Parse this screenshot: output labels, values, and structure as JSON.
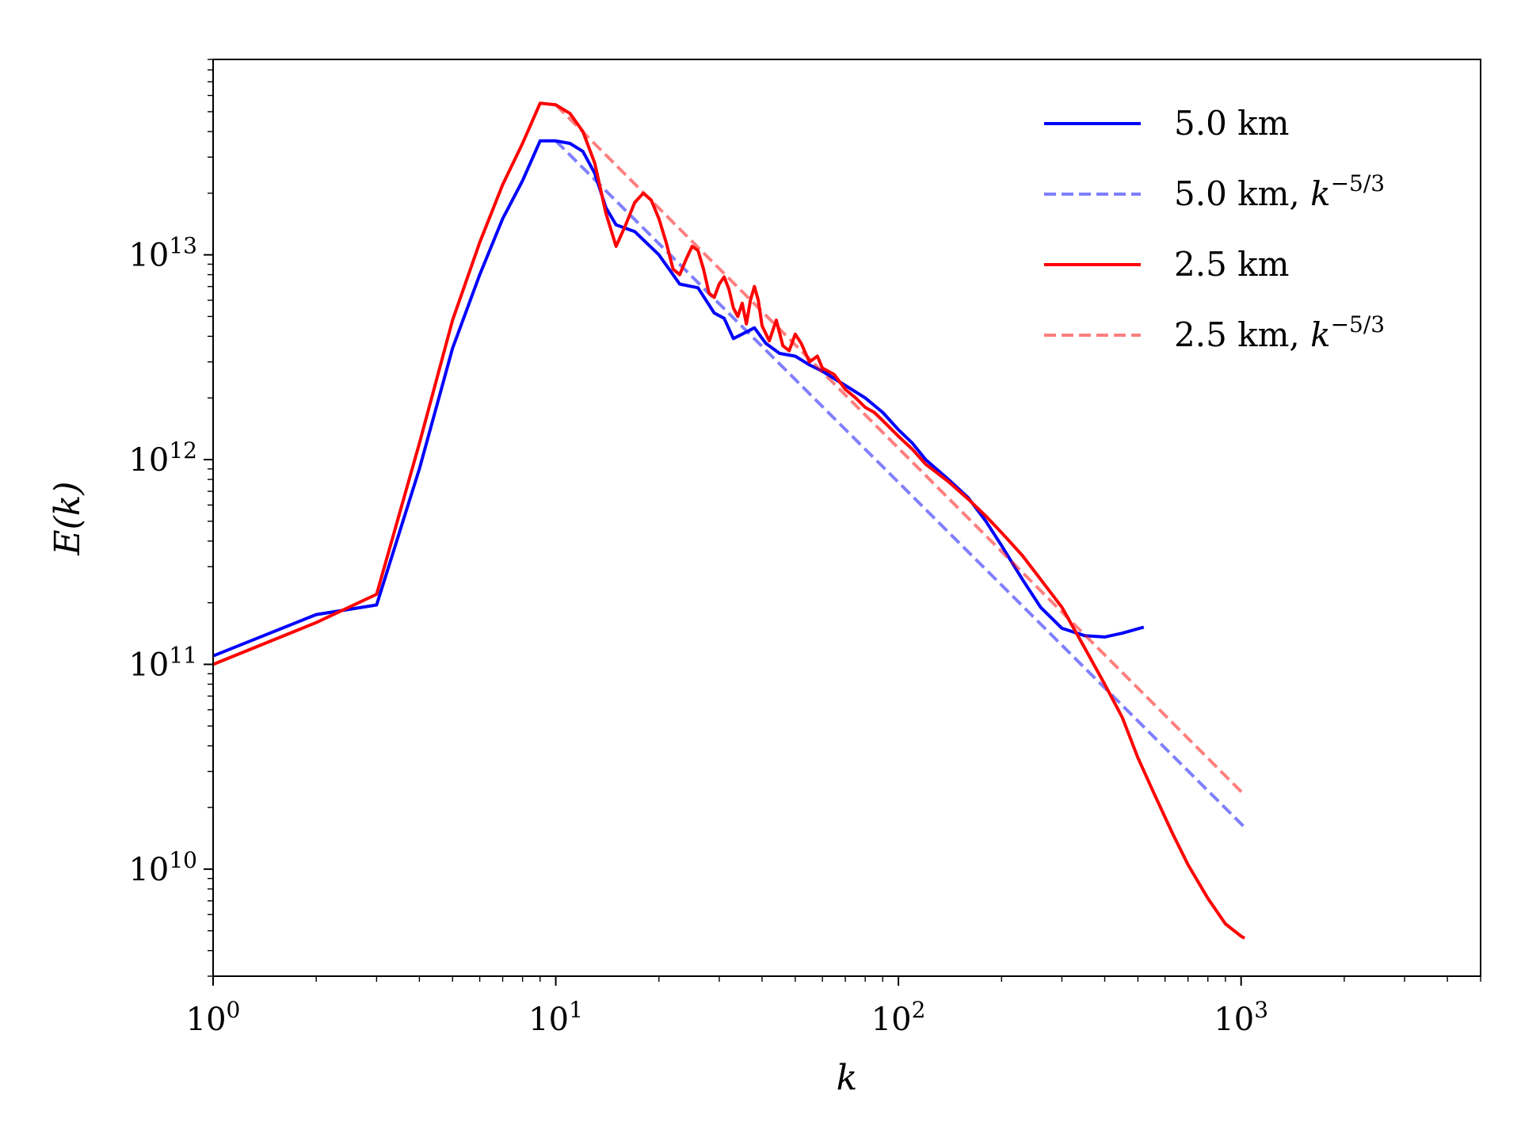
{
  "chart_data": {
    "type": "line",
    "xscale": "log",
    "yscale": "log",
    "xlabel": "k",
    "ylabel": "E(k)",
    "xlim": [
      1,
      5000
    ],
    "ylim": [
      3000000000.0,
      90000000000000.0
    ],
    "x_major_ticks": [
      {
        "value": 1,
        "base": "10",
        "exp": "0"
      },
      {
        "value": 10,
        "base": "10",
        "exp": "1"
      },
      {
        "value": 100,
        "base": "10",
        "exp": "2"
      },
      {
        "value": 1000,
        "base": "10",
        "exp": "3"
      }
    ],
    "y_major_ticks": [
      {
        "value": 10000000000.0,
        "base": "10",
        "exp": "10"
      },
      {
        "value": 100000000000.0,
        "base": "10",
        "exp": "11"
      },
      {
        "value": 1000000000000.0,
        "base": "10",
        "exp": "12"
      },
      {
        "value": 10000000000000.0,
        "base": "10",
        "exp": "13"
      }
    ],
    "legend_position": "top-right",
    "series": [
      {
        "name": "5.0 km",
        "color": "#0000ff",
        "style": "solid",
        "opacity": 1,
        "points": [
          [
            1,
            110000000000.0
          ],
          [
            2,
            175000000000.0
          ],
          [
            3,
            195000000000.0
          ],
          [
            4,
            900000000000.0
          ],
          [
            5,
            3500000000000.0
          ],
          [
            6,
            8000000000000.0
          ],
          [
            7,
            15000000000000.0
          ],
          [
            8,
            23000000000000.0
          ],
          [
            9,
            36000000000000.0
          ],
          [
            10,
            36000000000000.0
          ],
          [
            11,
            35000000000000.0
          ],
          [
            12,
            32000000000000.0
          ],
          [
            13,
            25000000000000.0
          ],
          [
            14,
            17000000000000.0
          ],
          [
            15,
            14000000000000.0
          ],
          [
            17,
            13000000000000.0
          ],
          [
            20,
            10000000000000.0
          ],
          [
            23,
            7200000000000.0
          ],
          [
            26,
            6900000000000.0
          ],
          [
            29,
            5200000000000.0
          ],
          [
            31,
            4900000000000.0
          ],
          [
            33,
            3900000000000.0
          ],
          [
            35,
            4100000000000.0
          ],
          [
            38,
            4400000000000.0
          ],
          [
            41,
            3700000000000.0
          ],
          [
            45,
            3300000000000.0
          ],
          [
            50,
            3200000000000.0
          ],
          [
            55,
            2900000000000.0
          ],
          [
            60,
            2700000000000.0
          ],
          [
            70,
            2300000000000.0
          ],
          [
            80,
            2000000000000.0
          ],
          [
            90,
            1700000000000.0
          ],
          [
            100,
            1400000000000.0
          ],
          [
            110,
            1200000000000.0
          ],
          [
            120,
            1000000000000.0
          ],
          [
            140,
            800000000000.0
          ],
          [
            160,
            650000000000.0
          ],
          [
            180,
            500000000000.0
          ],
          [
            200,
            380000000000.0
          ],
          [
            230,
            260000000000.0
          ],
          [
            260,
            190000000000.0
          ],
          [
            300,
            150000000000.0
          ],
          [
            350,
            138000000000.0
          ],
          [
            400,
            136000000000.0
          ],
          [
            450,
            142000000000.0
          ],
          [
            520,
            152000000000.0
          ]
        ]
      },
      {
        "name": "5.0 km, k^-5/3",
        "name_prefix": "5.0 km, ",
        "name_math": "k",
        "name_exp": "−5/3",
        "color": "#0000ff",
        "style": "dashed",
        "opacity": 0.5,
        "points": [
          [
            10,
            36000000000000.0
          ],
          [
            1024,
            16000000000.0
          ]
        ]
      },
      {
        "name": "2.5 km",
        "color": "#ff0000",
        "style": "solid",
        "opacity": 1,
        "points": [
          [
            1,
            100000000000.0
          ],
          [
            2,
            160000000000.0
          ],
          [
            3,
            220000000000.0
          ],
          [
            4,
            1200000000000.0
          ],
          [
            5,
            4800000000000.0
          ],
          [
            6,
            11500000000000.0
          ],
          [
            7,
            22000000000000.0
          ],
          [
            8,
            35000000000000.0
          ],
          [
            9,
            55000000000000.0
          ],
          [
            10,
            54000000000000.0
          ],
          [
            11,
            49000000000000.0
          ],
          [
            12,
            40000000000000.0
          ],
          [
            13,
            28000000000000.0
          ],
          [
            14,
            16000000000000.0
          ],
          [
            15,
            11000000000000.0
          ],
          [
            16,
            14000000000000.0
          ],
          [
            17,
            18000000000000.0
          ],
          [
            18,
            20000000000000.0
          ],
          [
            19,
            18500000000000.0
          ],
          [
            20,
            15000000000000.0
          ],
          [
            21,
            11500000000000.0
          ],
          [
            22,
            8500000000000.0
          ],
          [
            23,
            8000000000000.0
          ],
          [
            24,
            9500000000000.0
          ],
          [
            25,
            11000000000000.0
          ],
          [
            26,
            10500000000000.0
          ],
          [
            27,
            8500000000000.0
          ],
          [
            28,
            6500000000000.0
          ],
          [
            29,
            6200000000000.0
          ],
          [
            30,
            7200000000000.0
          ],
          [
            31,
            7800000000000.0
          ],
          [
            32,
            6800000000000.0
          ],
          [
            33,
            5500000000000.0
          ],
          [
            34,
            5000000000000.0
          ],
          [
            35,
            5800000000000.0
          ],
          [
            36,
            4600000000000.0
          ],
          [
            37,
            6000000000000.0
          ],
          [
            38,
            7000000000000.0
          ],
          [
            39,
            6000000000000.0
          ],
          [
            40,
            4500000000000.0
          ],
          [
            42,
            3800000000000.0
          ],
          [
            44,
            4800000000000.0
          ],
          [
            46,
            3600000000000.0
          ],
          [
            48,
            3400000000000.0
          ],
          [
            50,
            4100000000000.0
          ],
          [
            52,
            3700000000000.0
          ],
          [
            55,
            3000000000000.0
          ],
          [
            58,
            3200000000000.0
          ],
          [
            60,
            2800000000000.0
          ],
          [
            65,
            2600000000000.0
          ],
          [
            70,
            2200000000000.0
          ],
          [
            75,
            2000000000000.0
          ],
          [
            80,
            1800000000000.0
          ],
          [
            85,
            1700000000000.0
          ],
          [
            90,
            1550000000000.0
          ],
          [
            100,
            1300000000000.0
          ],
          [
            110,
            1120000000000.0
          ],
          [
            120,
            950000000000.0
          ],
          [
            140,
            780000000000.0
          ],
          [
            160,
            640000000000.0
          ],
          [
            180,
            530000000000.0
          ],
          [
            200,
            440000000000.0
          ],
          [
            230,
            340000000000.0
          ],
          [
            260,
            260000000000.0
          ],
          [
            300,
            190000000000.0
          ],
          [
            350,
            120000000000.0
          ],
          [
            400,
            80000000000.0
          ],
          [
            450,
            55000000000.0
          ],
          [
            500,
            35000000000.0
          ],
          [
            560,
            23000000000.0
          ],
          [
            630,
            15000000000.0
          ],
          [
            700,
            10500000000.0
          ],
          [
            800,
            7200000000.0
          ],
          [
            900,
            5400000000.0
          ],
          [
            1000,
            4700000000.0
          ],
          [
            1024,
            4600000000.0
          ]
        ]
      },
      {
        "name": "2.5 km, k^-5/3",
        "name_prefix": "2.5 km, ",
        "name_math": "k",
        "name_exp": "−5/3",
        "color": "#ff0000",
        "style": "dashed",
        "opacity": 0.5,
        "points": [
          [
            10,
            54000000000000.0
          ],
          [
            1024,
            23000000000.0
          ]
        ]
      }
    ]
  }
}
